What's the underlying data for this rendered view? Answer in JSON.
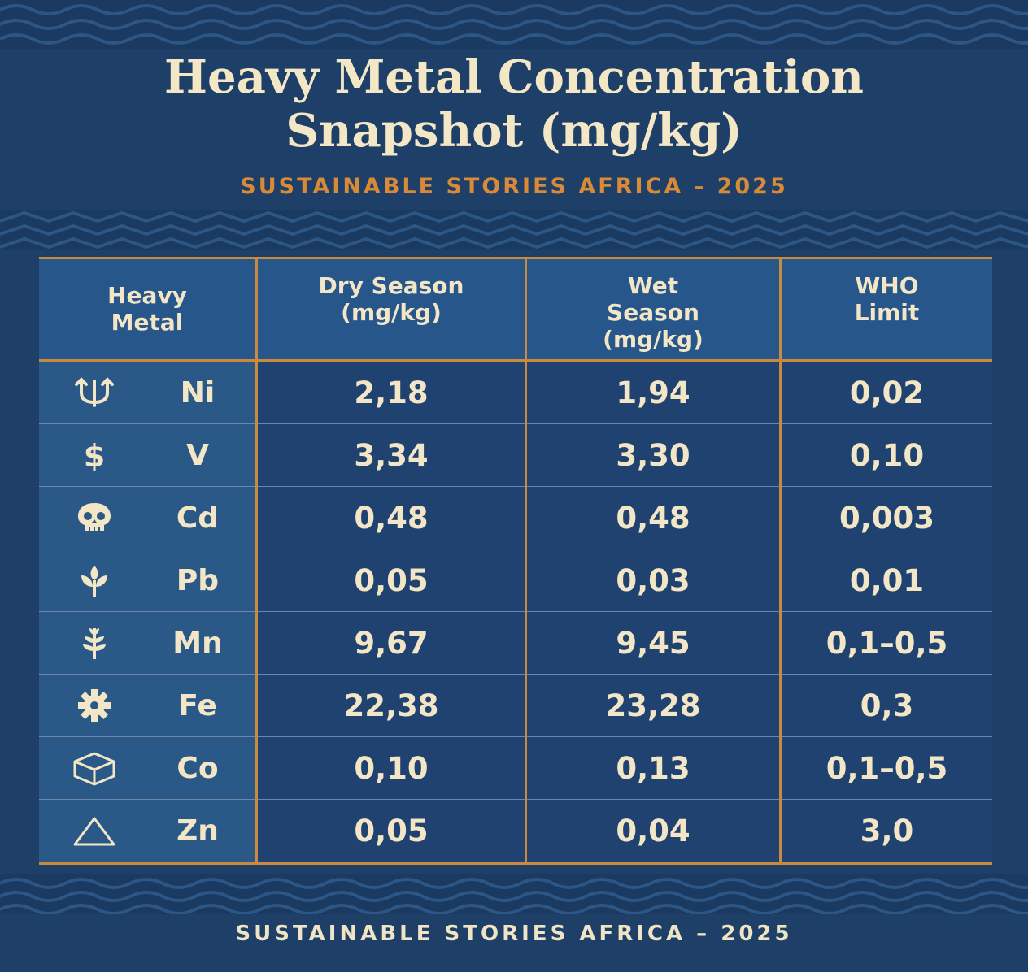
{
  "title_line1": "Heavy Metal Concentration",
  "title_line2": "Snapshot (mg/kg)",
  "subtitle": "SUSTAINABLE STORIES AFRICA – 2025",
  "footer": "SUSTAINABLE STORIES AFRICA – 2025",
  "colors": {
    "background": "#1d3f68",
    "accent": "#c98a3e",
    "subtitle": "#d88a37",
    "text": "#f2e6c7"
  },
  "table": {
    "headers": [
      "Heavy\nMetal",
      "Dry Season\n(mg/kg)",
      "Wet\nSeason\n(mg/kg)",
      "WHO\nLimit"
    ],
    "rows": [
      {
        "icon": "trident-icon",
        "symbol": "Ni",
        "dry": "2,18",
        "wet": "1,94",
        "who": "0,02"
      },
      {
        "icon": "dollar-icon",
        "symbol": "V",
        "dry": "3,34",
        "wet": "3,30",
        "who": "0,10"
      },
      {
        "icon": "skull-icon",
        "symbol": "Cd",
        "dry": "0,48",
        "wet": "0,48",
        "who": "0,003"
      },
      {
        "icon": "plant-icon",
        "symbol": "Pb",
        "dry": "0,05",
        "wet": "0,03",
        "who": "0,01"
      },
      {
        "icon": "wheat-icon",
        "symbol": "Mn",
        "dry": "9,67",
        "wet": "9,45",
        "who": "0,1–0,5"
      },
      {
        "icon": "gear-icon",
        "symbol": "Fe",
        "dry": "22,38",
        "wet": "23,28",
        "who": "0,3"
      },
      {
        "icon": "cube-icon",
        "symbol": "Co",
        "dry": "0,10",
        "wet": "0,13",
        "who": "0,1–0,5"
      },
      {
        "icon": "triangle-icon",
        "symbol": "Zn",
        "dry": "0,05",
        "wet": "0,04",
        "who": "3,0"
      }
    ]
  }
}
